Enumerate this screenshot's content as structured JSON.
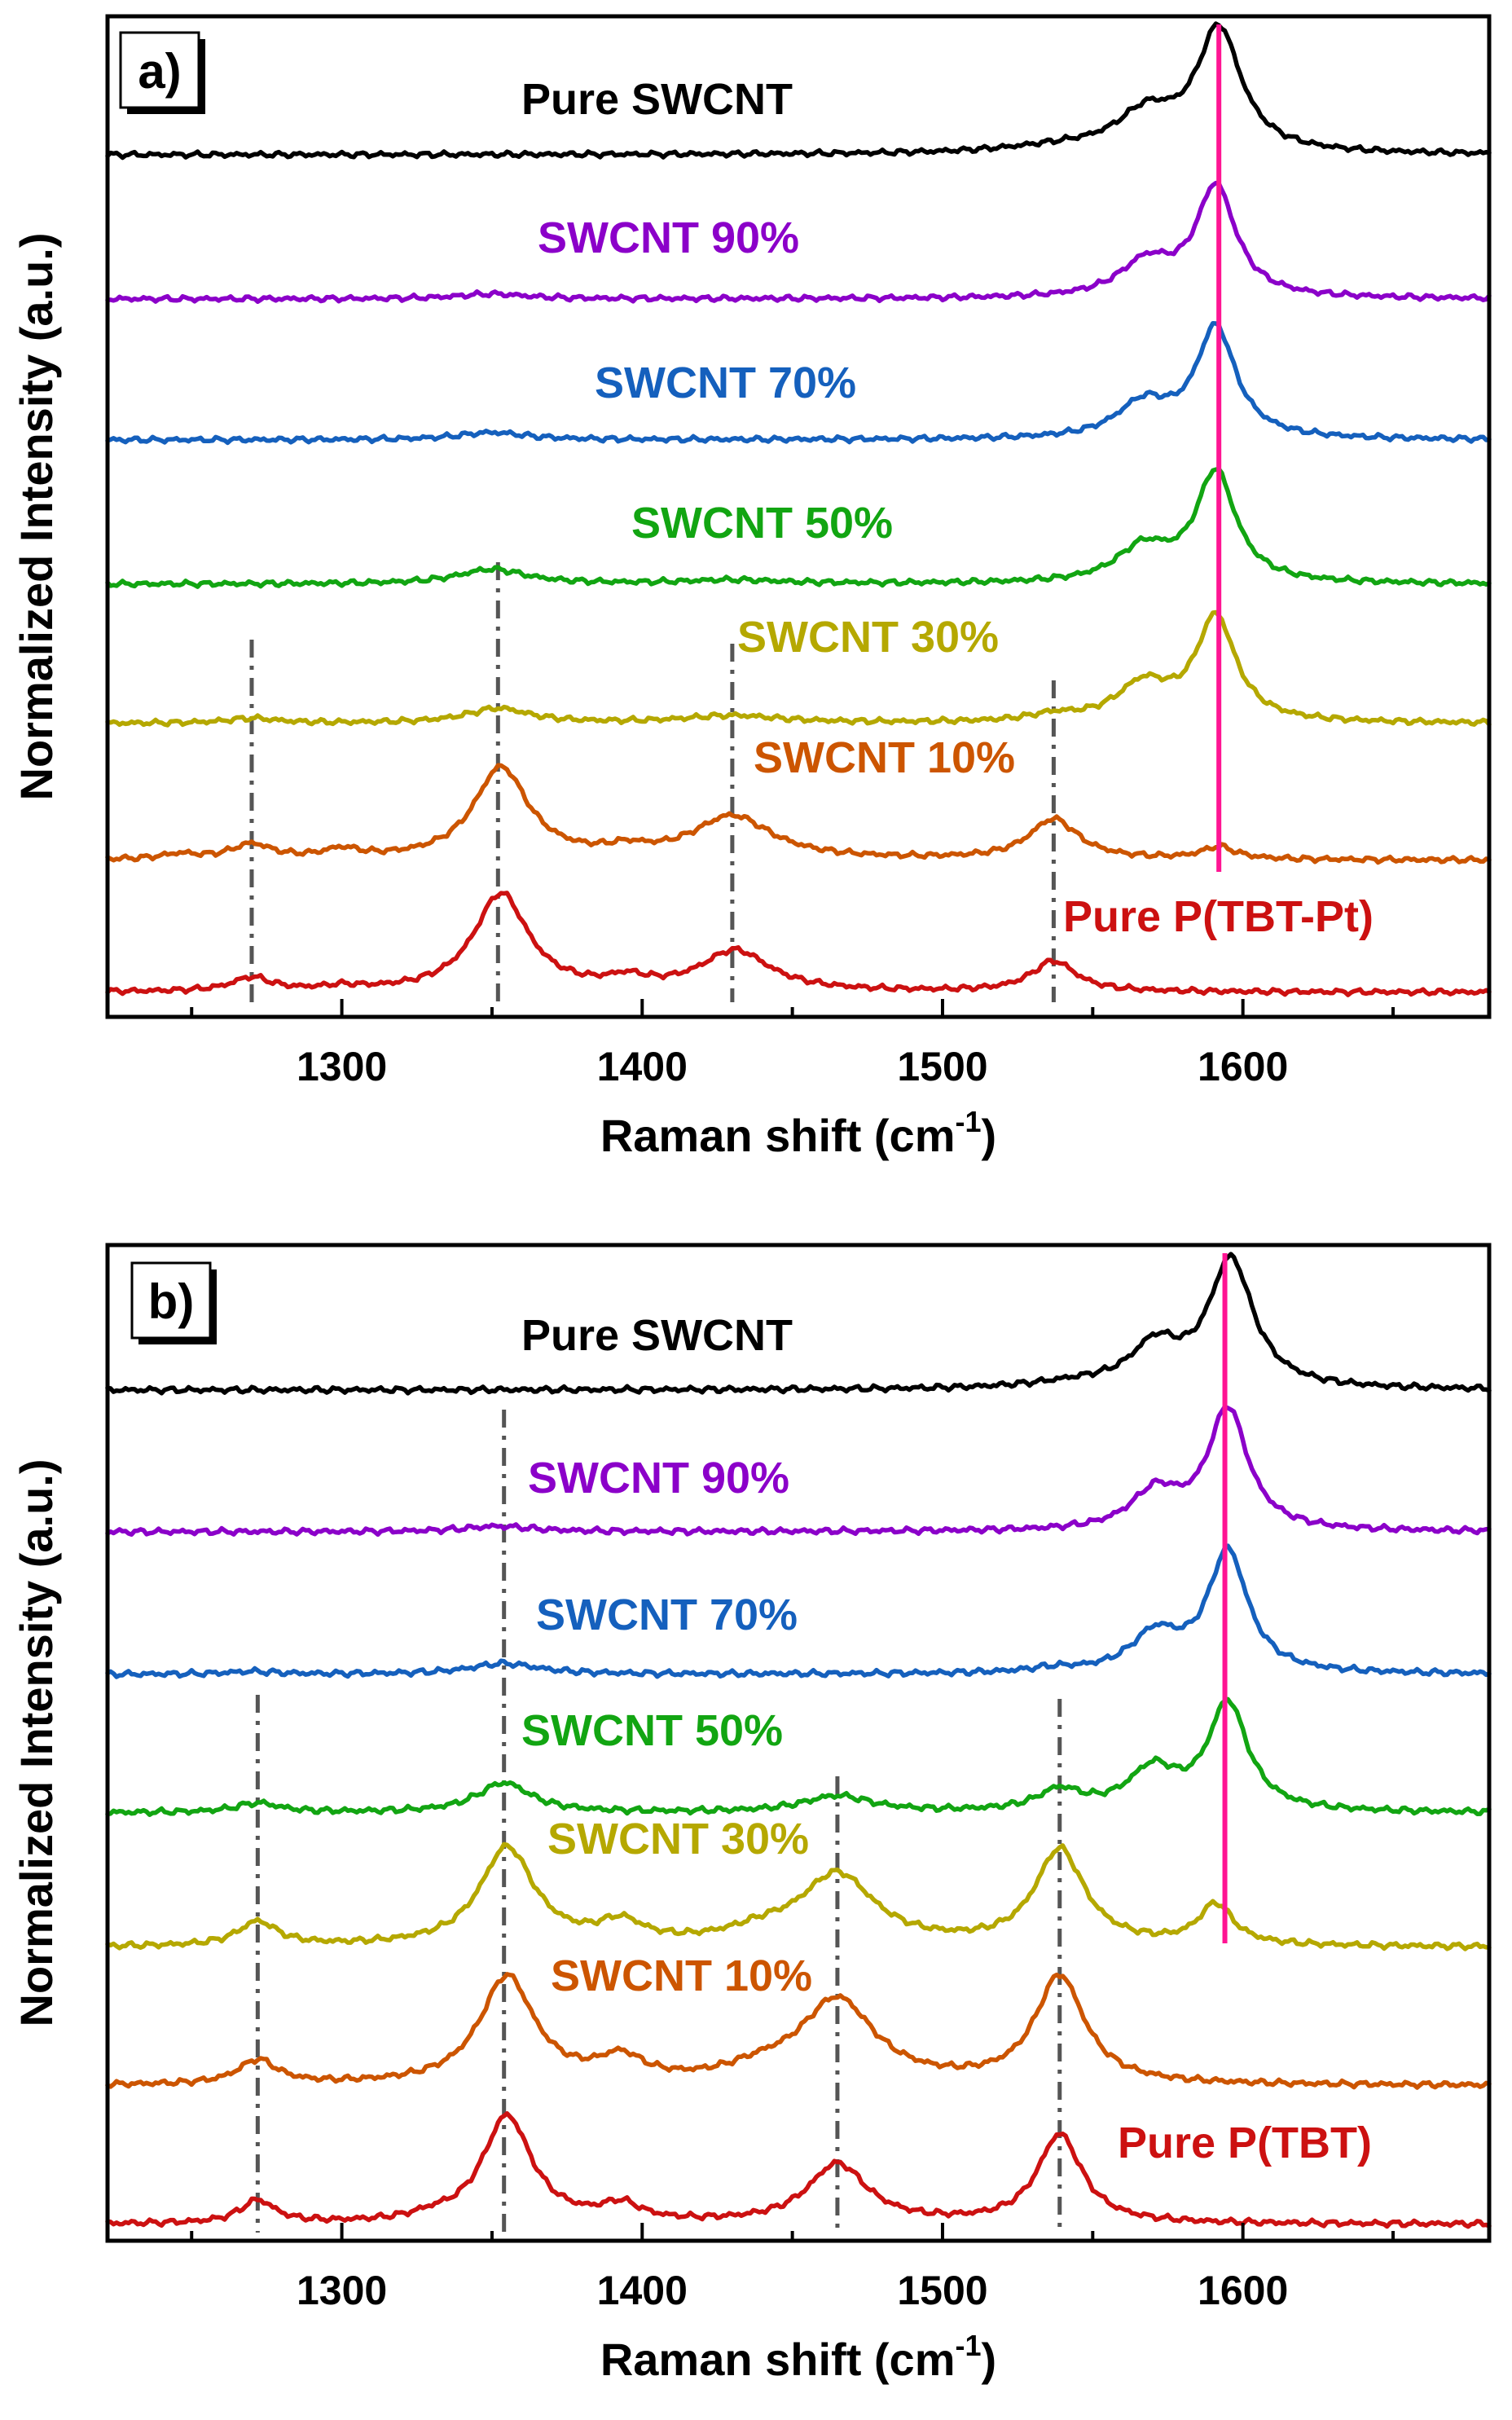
{
  "chart_data": [
    {
      "type": "line",
      "panel_label": "a)",
      "xlabel": "Raman shift (cm",
      "xlabel_sup": "-1",
      "xlabel_end": ")",
      "ylabel": "Normalized Intensity (a.u.)",
      "xlim": [
        1222,
        1682
      ],
      "xticks": [
        1300,
        1400,
        1500,
        1600
      ],
      "x_minor": [
        1250,
        1350,
        1450,
        1550,
        1650
      ],
      "guide_lines": [
        1270,
        1352,
        1430,
        1537
      ],
      "peak_line": 1592,
      "series": [
        {
          "name": "Pure SWCNT",
          "color": "#000000",
          "baseline": 6.0,
          "peaks": [
            [
              1592,
              1.0,
              9
            ],
            [
              1568,
              0.3,
              12
            ],
            [
              1540,
              0.05,
              25
            ]
          ]
        },
        {
          "name": "SWCNT 90%",
          "color": "#8b00c9",
          "baseline": 5.0,
          "peaks": [
            [
              1591,
              0.9,
              8
            ],
            [
              1568,
              0.28,
              11
            ],
            [
              1350,
              0.04,
              14
            ]
          ]
        },
        {
          "name": "SWCNT 70%",
          "color": "#1560bd",
          "baseline": 4.0,
          "peaks": [
            [
              1591,
              0.9,
              8
            ],
            [
              1567,
              0.28,
              11
            ],
            [
              1350,
              0.06,
              14
            ]
          ]
        },
        {
          "name": "SWCNT 50%",
          "color": "#12a512",
          "baseline": 3.0,
          "peaks": [
            [
              1591,
              0.9,
              8
            ],
            [
              1567,
              0.28,
              11
            ],
            [
              1350,
              0.12,
              14
            ],
            [
              1430,
              0.03,
              20
            ]
          ]
        },
        {
          "name": "SWCNT 30%",
          "color": "#b5a800",
          "baseline": 2.0,
          "peaks": [
            [
              1591,
              0.85,
              8
            ],
            [
              1567,
              0.3,
              11
            ],
            [
              1352,
              0.12,
              13
            ],
            [
              1430,
              0.06,
              20
            ],
            [
              1537,
              0.05,
              10
            ],
            [
              1270,
              0.04,
              10
            ]
          ]
        },
        {
          "name": "SWCNT 10%",
          "color": "#cc5500",
          "baseline": 1.0,
          "peaks": [
            [
              1353,
              0.75,
              11
            ],
            [
              1430,
              0.35,
              16
            ],
            [
              1537,
              0.33,
              10
            ],
            [
              1592,
              0.1,
              7
            ],
            [
              1270,
              0.12,
              8
            ],
            [
              1300,
              0.07,
              7
            ],
            [
              1395,
              0.06,
              8
            ],
            [
              1246,
              0.04,
              7
            ]
          ]
        },
        {
          "name": "Pure P(TBT-Pt)",
          "color": "#cc1111",
          "baseline": 0.0,
          "peaks": [
            [
              1353,
              0.8,
              11
            ],
            [
              1431,
              0.33,
              14
            ],
            [
              1537,
              0.25,
              9
            ],
            [
              1270,
              0.11,
              8
            ],
            [
              1395,
              0.08,
              8
            ],
            [
              1300,
              0.03,
              8
            ]
          ]
        }
      ]
    },
    {
      "type": "line",
      "panel_label": "b)",
      "xlabel": "Raman shift (cm",
      "xlabel_sup": "-1",
      "xlabel_end": ")",
      "ylabel": "Normalized Intensity (a.u.)",
      "xlim": [
        1222,
        1682
      ],
      "xticks": [
        1300,
        1400,
        1500,
        1600
      ],
      "x_minor": [
        1250,
        1350,
        1450,
        1550,
        1650
      ],
      "guide_lines": [
        1272,
        1354,
        1465,
        1539
      ],
      "peak_line": 1594,
      "series": [
        {
          "name": "Pure SWCNT",
          "color": "#000000",
          "baseline": 6.0,
          "peaks": [
            [
              1596,
              0.95,
              9
            ],
            [
              1571,
              0.3,
              10
            ],
            [
              1545,
              0.04,
              20
            ]
          ]
        },
        {
          "name": "SWCNT 90%",
          "color": "#8b00c9",
          "baseline": 5.0,
          "peaks": [
            [
              1595,
              0.9,
              8
            ],
            [
              1571,
              0.28,
              10
            ],
            [
              1352,
              0.04,
              14
            ]
          ]
        },
        {
          "name": "SWCNT 70%",
          "color": "#1560bd",
          "baseline": 4.0,
          "peaks": [
            [
              1595,
              0.9,
              8
            ],
            [
              1571,
              0.28,
              10
            ],
            [
              1354,
              0.08,
              14
            ],
            [
              1270,
              0.02,
              10
            ],
            [
              1537,
              0.03,
              10
            ]
          ]
        },
        {
          "name": "SWCNT 50%",
          "color": "#12a512",
          "baseline": 3.0,
          "peaks": [
            [
              1595,
              0.8,
              8
            ],
            [
              1570,
              0.3,
              10
            ],
            [
              1354,
              0.22,
              11
            ],
            [
              1465,
              0.12,
              14
            ],
            [
              1539,
              0.15,
              9
            ],
            [
              1272,
              0.07,
              9
            ]
          ]
        },
        {
          "name": "SWCNT 30%",
          "color": "#b5a800",
          "baseline": 2.0,
          "peaks": [
            [
              1355,
              0.73,
              11
            ],
            [
              1465,
              0.52,
              15
            ],
            [
              1539,
              0.71,
              10
            ],
            [
              1591,
              0.3,
              7
            ],
            [
              1272,
              0.18,
              8
            ],
            [
              1393,
              0.15,
              9
            ],
            [
              1440,
              0.08,
              15
            ]
          ]
        },
        {
          "name": "SWCNT 10%",
          "color": "#cc5500",
          "baseline": 1.0,
          "peaks": [
            [
              1355,
              0.8,
              11
            ],
            [
              1465,
              0.62,
              15
            ],
            [
              1539,
              0.8,
              10
            ],
            [
              1272,
              0.18,
              8
            ],
            [
              1393,
              0.17,
              9
            ],
            [
              1440,
              0.08,
              15
            ]
          ]
        },
        {
          "name": "Pure P(TBT)",
          "color": "#cc1111",
          "baseline": 0.0,
          "peaks": [
            [
              1355,
              0.8,
              10
            ],
            [
              1465,
              0.44,
              12
            ],
            [
              1539,
              0.66,
              9
            ],
            [
              1272,
              0.17,
              7
            ],
            [
              1393,
              0.12,
              8
            ],
            [
              1330,
              0.03,
              8
            ]
          ]
        }
      ]
    }
  ]
}
